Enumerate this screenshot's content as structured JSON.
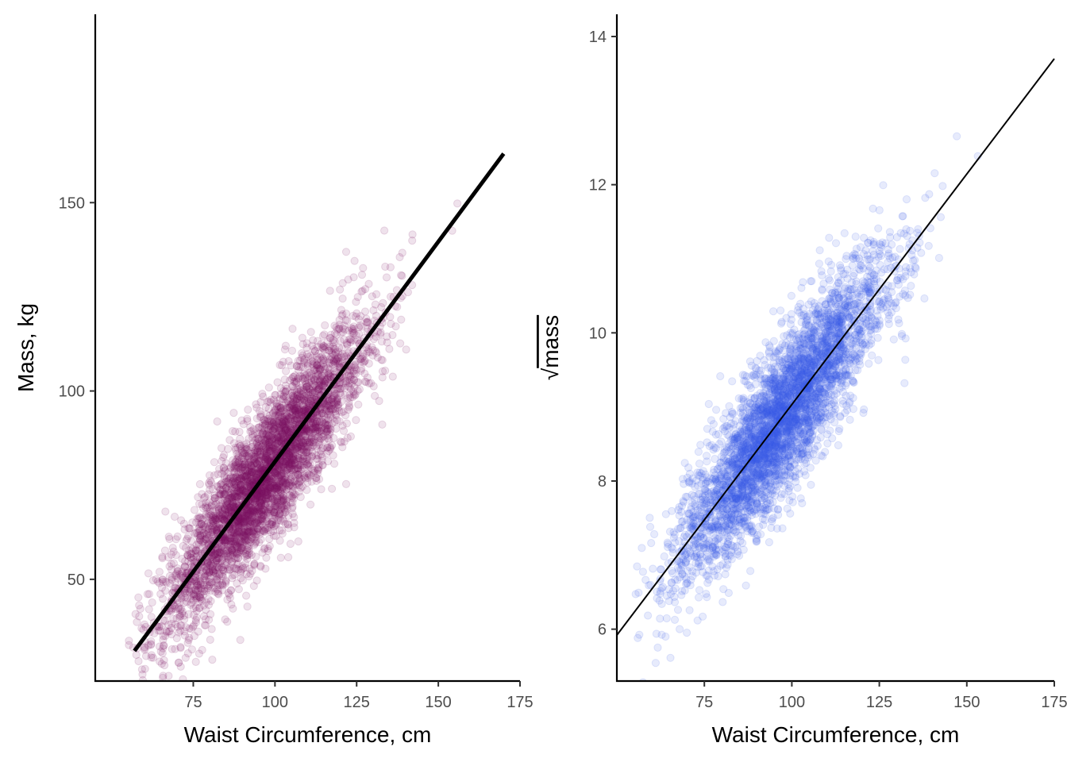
{
  "chart_data": [
    {
      "type": "scatter",
      "xlabel": "Waist Circumference, cm",
      "ylabel": "Mass, kg",
      "xlim": [
        45,
        175
      ],
      "ylim": [
        23,
        200
      ],
      "x_ticks": [
        75,
        100,
        125,
        150,
        175
      ],
      "y_ticks": [
        50,
        100,
        150
      ],
      "grid": false,
      "point_color": "#7f1461",
      "point_alpha": 0.12,
      "trend_line": {
        "x": [
          57,
          170
        ],
        "y": [
          31,
          163
        ]
      },
      "point_cloud": {
        "n": 4000,
        "x_mean": 97,
        "x_sd": 15,
        "slope": 1.155,
        "intercept": -34.6,
        "residual_sd": 9,
        "x_range": [
          55,
          170
        ]
      }
    },
    {
      "type": "scatter",
      "xlabel": "Waist Circumference, cm",
      "ylabel": "mass",
      "ylabel_prefix": "√",
      "xlim": [
        50,
        175
      ],
      "ylim": [
        5.3,
        14.3
      ],
      "x_ticks": [
        75,
        100,
        125,
        150,
        175
      ],
      "y_ticks": [
        6,
        8,
        10,
        12,
        14
      ],
      "grid": false,
      "point_color": "#3b5ee8",
      "point_alpha": 0.12,
      "trend_line": {
        "x": [
          50,
          175
        ],
        "y": [
          5.92,
          13.7
        ]
      },
      "point_cloud": {
        "n": 4000,
        "x_mean": 97,
        "x_sd": 15,
        "slope": 0.0622,
        "intercept": 2.81,
        "residual_sd": 0.5,
        "x_range": [
          55,
          170
        ]
      }
    }
  ]
}
